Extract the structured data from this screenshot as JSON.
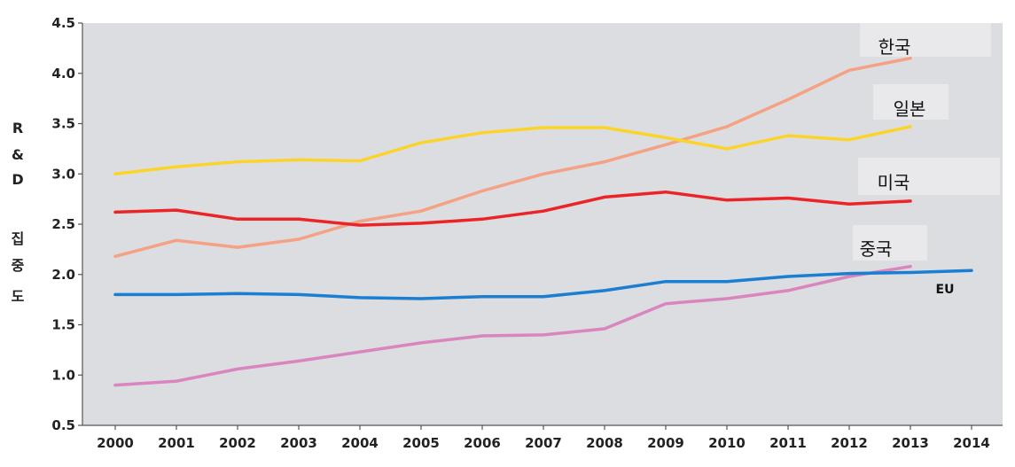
{
  "chart_data": {
    "type": "line",
    "title": "",
    "xlabel": "",
    "ylabel_chars": [
      "R",
      "&",
      "D",
      "집",
      "중",
      "도"
    ],
    "ylim": [
      0.5,
      4.5
    ],
    "yticks": [
      "0.5",
      "1.0",
      "1.5",
      "2.0",
      "2.5",
      "3.0",
      "3.5",
      "4.0",
      "4.5"
    ],
    "x": [
      "2000",
      "2001",
      "2002",
      "2003",
      "2004",
      "2005",
      "2006",
      "2007",
      "2008",
      "2009",
      "2010",
      "2011",
      "2012",
      "2013",
      "2014"
    ],
    "grid": false,
    "background": "#dcdde0",
    "series": [
      {
        "name": "한국",
        "color": "#f4a184",
        "values": [
          2.18,
          2.34,
          2.27,
          2.35,
          2.53,
          2.63,
          2.83,
          3.0,
          3.12,
          3.29,
          3.47,
          3.74,
          4.03,
          4.15,
          null
        ]
      },
      {
        "name": "일본",
        "color": "#fbd42b",
        "values": [
          3.0,
          3.07,
          3.12,
          3.14,
          3.13,
          3.31,
          3.41,
          3.46,
          3.46,
          3.36,
          3.25,
          3.38,
          3.34,
          3.47,
          null
        ]
      },
      {
        "name": "미국",
        "color": "#ea2427",
        "values": [
          2.62,
          2.64,
          2.55,
          2.55,
          2.49,
          2.51,
          2.55,
          2.63,
          2.77,
          2.82,
          2.74,
          2.76,
          2.7,
          2.73,
          null
        ]
      },
      {
        "name": "중국",
        "color": "#d985c0",
        "values": [
          0.9,
          0.94,
          1.06,
          1.14,
          1.23,
          1.32,
          1.39,
          1.4,
          1.46,
          1.71,
          1.76,
          1.84,
          1.98,
          2.08,
          null
        ]
      },
      {
        "name": "EU",
        "color": "#1c7ed0",
        "values": [
          1.8,
          1.8,
          1.81,
          1.8,
          1.77,
          1.76,
          1.78,
          1.78,
          1.84,
          1.93,
          1.93,
          1.98,
          2.01,
          2.02,
          2.04
        ]
      }
    ]
  }
}
